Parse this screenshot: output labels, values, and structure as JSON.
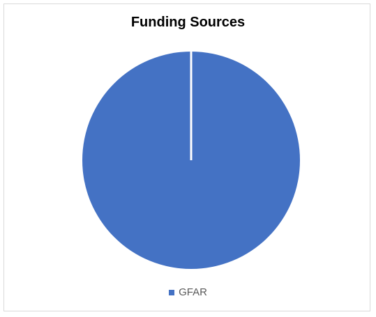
{
  "chart_data": {
    "type": "pie",
    "title": "Funding Sources",
    "categories": [
      "GFAR"
    ],
    "values": [
      100
    ],
    "colors": [
      "#4472c4"
    ],
    "legend_position": "bottom"
  }
}
